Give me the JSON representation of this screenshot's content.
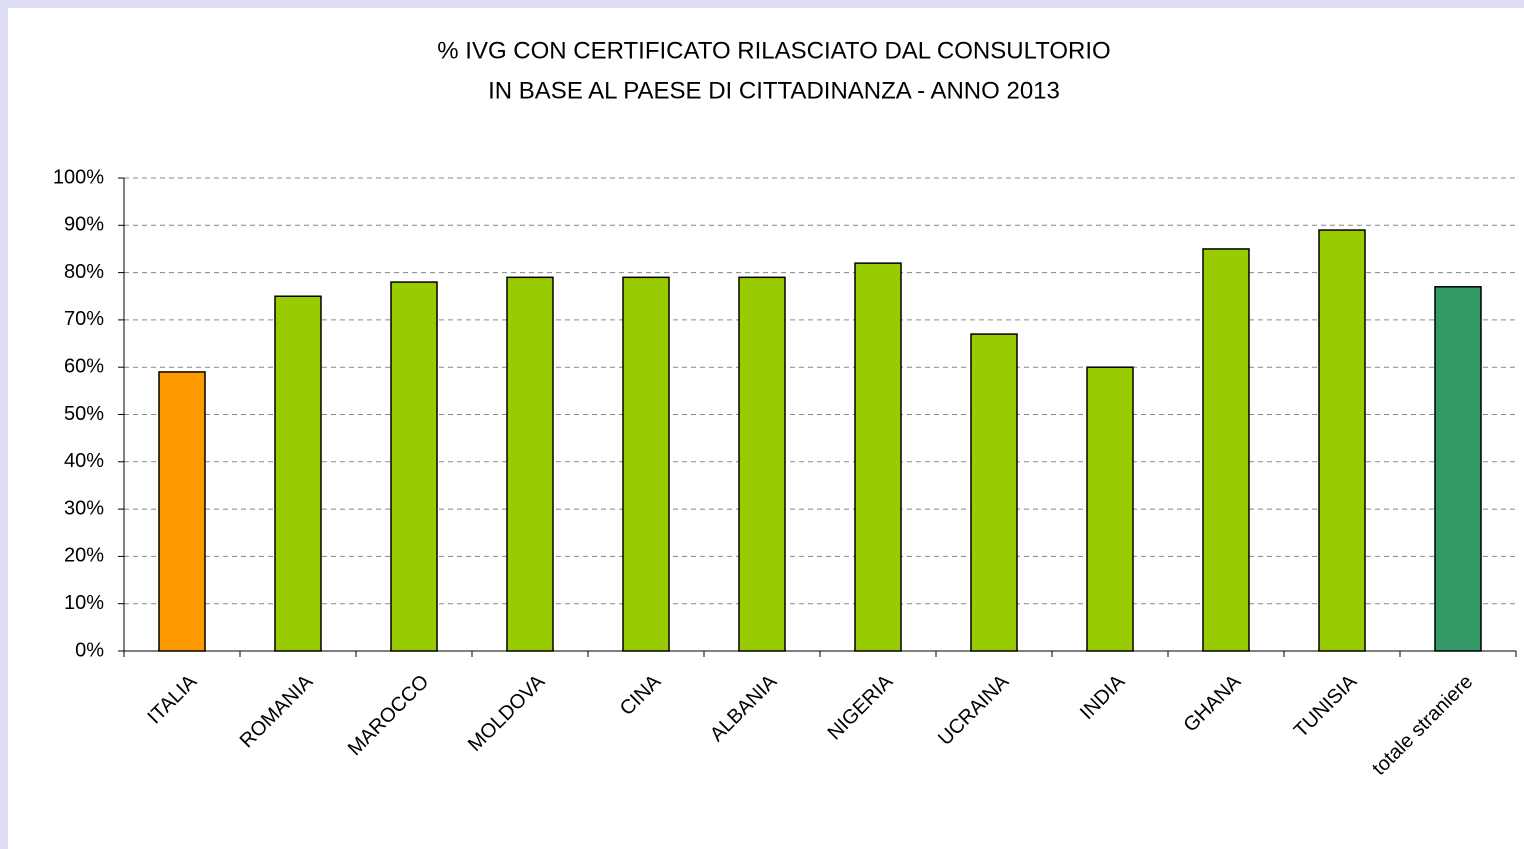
{
  "chart_data": {
    "type": "bar",
    "title": [
      "% IVG CON CERTIFICATO RILASCIATO DAL CONSULTORIO",
      "IN BASE AL PAESE DI CITTADINANZA - ANNO 2013"
    ],
    "categories": [
      "ITALIA",
      "ROMANIA",
      "MAROCCO",
      "MOLDOVA",
      "CINA",
      "ALBANIA",
      "NIGERIA",
      "UCRAINA",
      "INDIA",
      "GHANA",
      "TUNISIA",
      "totale straniere"
    ],
    "values": [
      59,
      75,
      78,
      79,
      79,
      79,
      82,
      67,
      60,
      85,
      89,
      77
    ],
    "colors": [
      "#ff9900",
      "#99cc00",
      "#99cc00",
      "#99cc00",
      "#99cc00",
      "#99cc00",
      "#99cc00",
      "#99cc00",
      "#99cc00",
      "#99cc00",
      "#99cc00",
      "#339966"
    ],
    "ylim": [
      0,
      100
    ],
    "yticks": [
      {
        "value": 0,
        "label": "0%"
      },
      {
        "value": 10,
        "label": "10%"
      },
      {
        "value": 20,
        "label": "20%"
      },
      {
        "value": 30,
        "label": "30%"
      },
      {
        "value": 40,
        "label": "40%"
      },
      {
        "value": 50,
        "label": "50%"
      },
      {
        "value": 60,
        "label": "60%"
      },
      {
        "value": 70,
        "label": "70%"
      },
      {
        "value": 80,
        "label": "80%"
      },
      {
        "value": 90,
        "label": "90%"
      },
      {
        "value": 100,
        "label": "100%"
      }
    ],
    "grid": true
  }
}
